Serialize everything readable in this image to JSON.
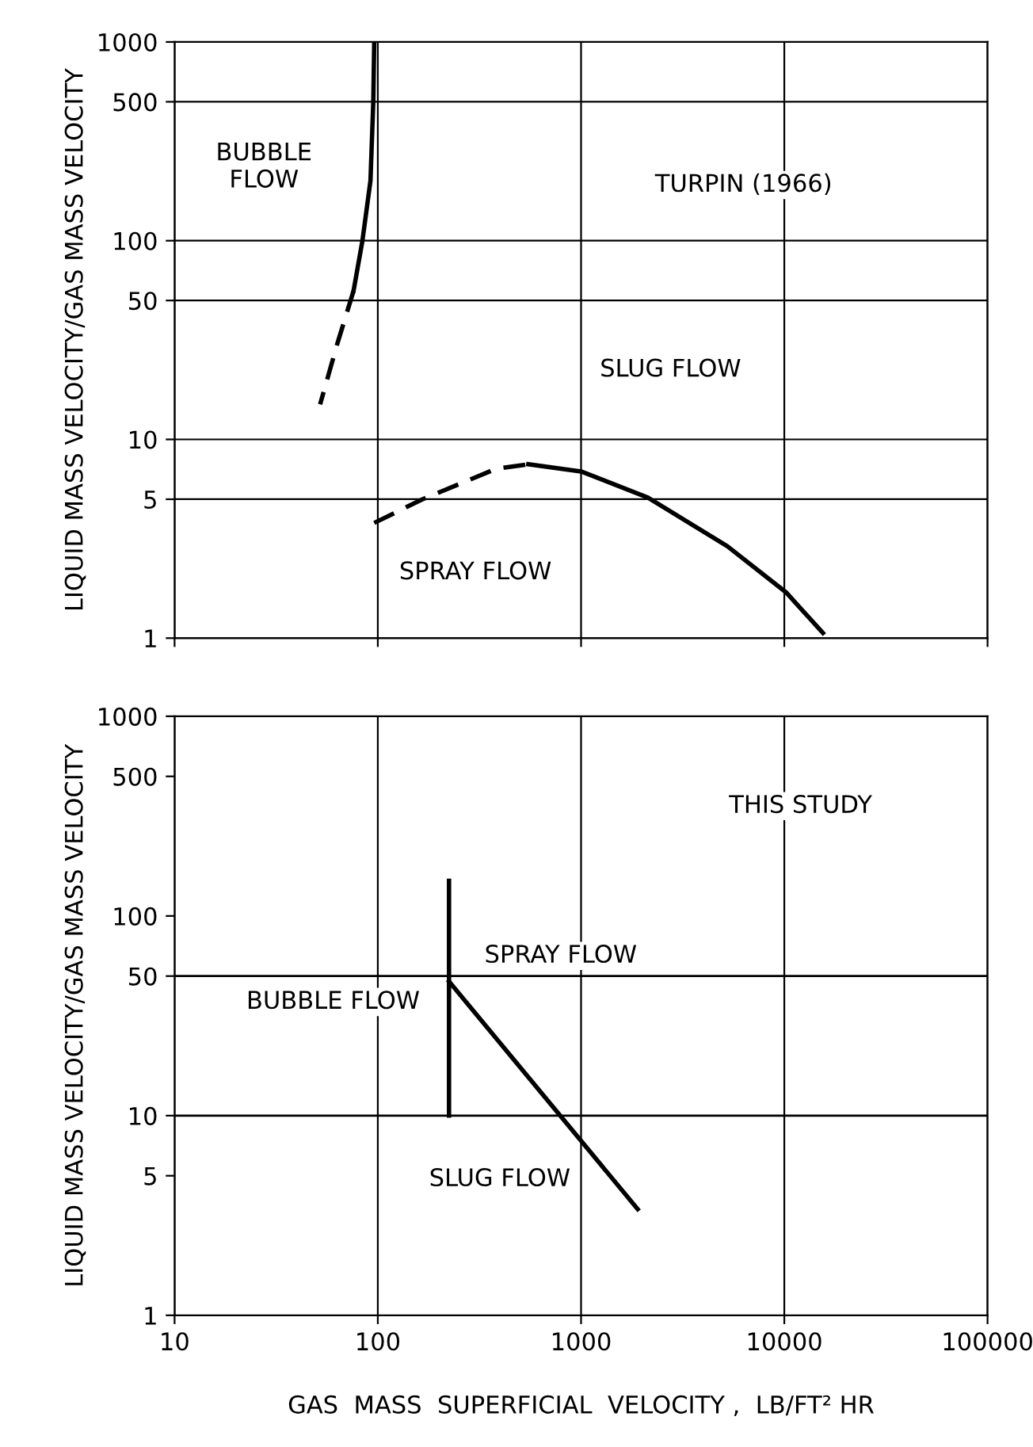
{
  "chart_data": [
    {
      "type": "line",
      "ylabel": "LIQUID MASS VELOCITY/GAS MASS VELOCITY",
      "log": "xy",
      "xlim": [
        10,
        100000
      ],
      "ylim": [
        1,
        1000
      ],
      "xticks": [
        10,
        100,
        1000,
        10000,
        100000
      ],
      "yticks": [
        1,
        5,
        10,
        50,
        100,
        500,
        1000
      ],
      "grid": true,
      "tick_labels": "y",
      "marker": "none",
      "series": [
        {
          "color": "#000000",
          "line_style": "solid",
          "x": [
            96,
            95,
            92,
            84,
            76
          ],
          "values": [
            1000,
            500,
            200,
            100,
            56
          ]
        },
        {
          "color": "#000000",
          "line_style": "dashed",
          "x": [
            76,
            63,
            52
          ],
          "values": [
            56,
            30,
            15
          ]
        },
        {
          "color": "#000000",
          "line_style": "dashed",
          "x": [
            96,
            166,
            380,
            550
          ],
          "values": [
            3.8,
            5,
            7.1,
            7.5
          ]
        },
        {
          "color": "#000000",
          "line_style": "solid",
          "x": [
            550,
            1000,
            2130,
            5250,
            10200,
            15500
          ],
          "values": [
            7.5,
            6.9,
            5.1,
            2.9,
            1.7,
            1.06
          ]
        }
      ],
      "annotations": [
        "BUBBLE\nFLOW",
        "TURPIN (1966)",
        "SLUG FLOW",
        "SPRAY FLOW"
      ]
    },
    {
      "type": "line",
      "xlabel": "GAS  MASS  SUPERFICIAL  VELOCITY ,  LB/FT² HR",
      "ylabel": "LIQUID MASS VELOCITY/GAS MASS VELOCITY",
      "log": "xy",
      "xlim": [
        10,
        100000
      ],
      "ylim": [
        1,
        1000
      ],
      "xticks": [
        10,
        100,
        1000,
        10000,
        100000
      ],
      "yticks": [
        1,
        5,
        10,
        50,
        100,
        500,
        1000
      ],
      "grid": "x",
      "ref_lines": [
        {
          "axis": "y",
          "value": 10,
          "color": "#000000"
        },
        {
          "axis": "y",
          "value": 50,
          "color": "#000000"
        }
      ],
      "marker": "none",
      "series": [
        {
          "color": "#000000",
          "line_style": "solid",
          "x": [
            224,
            224
          ],
          "values": [
            150,
            10
          ]
        },
        {
          "color": "#000000",
          "line_style": "solid",
          "x": [
            224,
            1900
          ],
          "values": [
            47,
            3.4
          ]
        }
      ],
      "annotations": [
        "THIS STUDY",
        "SPRAY FLOW",
        "BUBBLE FLOW",
        "SLUG FLOW"
      ]
    }
  ]
}
